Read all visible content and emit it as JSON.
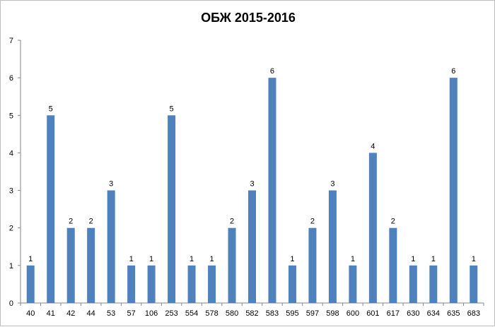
{
  "chart_data": {
    "type": "bar",
    "title": "ОБЖ 2015-2016",
    "xlabel": "",
    "ylabel": "",
    "categories": [
      "40",
      "41",
      "42",
      "44",
      "53",
      "57",
      "106",
      "253",
      "554",
      "578",
      "580",
      "582",
      "583",
      "595",
      "597",
      "598",
      "600",
      "601",
      "617",
      "630",
      "634",
      "635",
      "683"
    ],
    "values": [
      1,
      5,
      2,
      2,
      3,
      1,
      1,
      5,
      1,
      1,
      2,
      3,
      6,
      1,
      2,
      3,
      1,
      4,
      2,
      1,
      1,
      6,
      1
    ],
    "ylim": [
      0,
      7
    ],
    "yticks": [
      "0",
      "1",
      "2",
      "3",
      "4",
      "5",
      "6",
      "7"
    ],
    "grid": false,
    "legend": "none",
    "bar_color": "#4f81bd"
  }
}
